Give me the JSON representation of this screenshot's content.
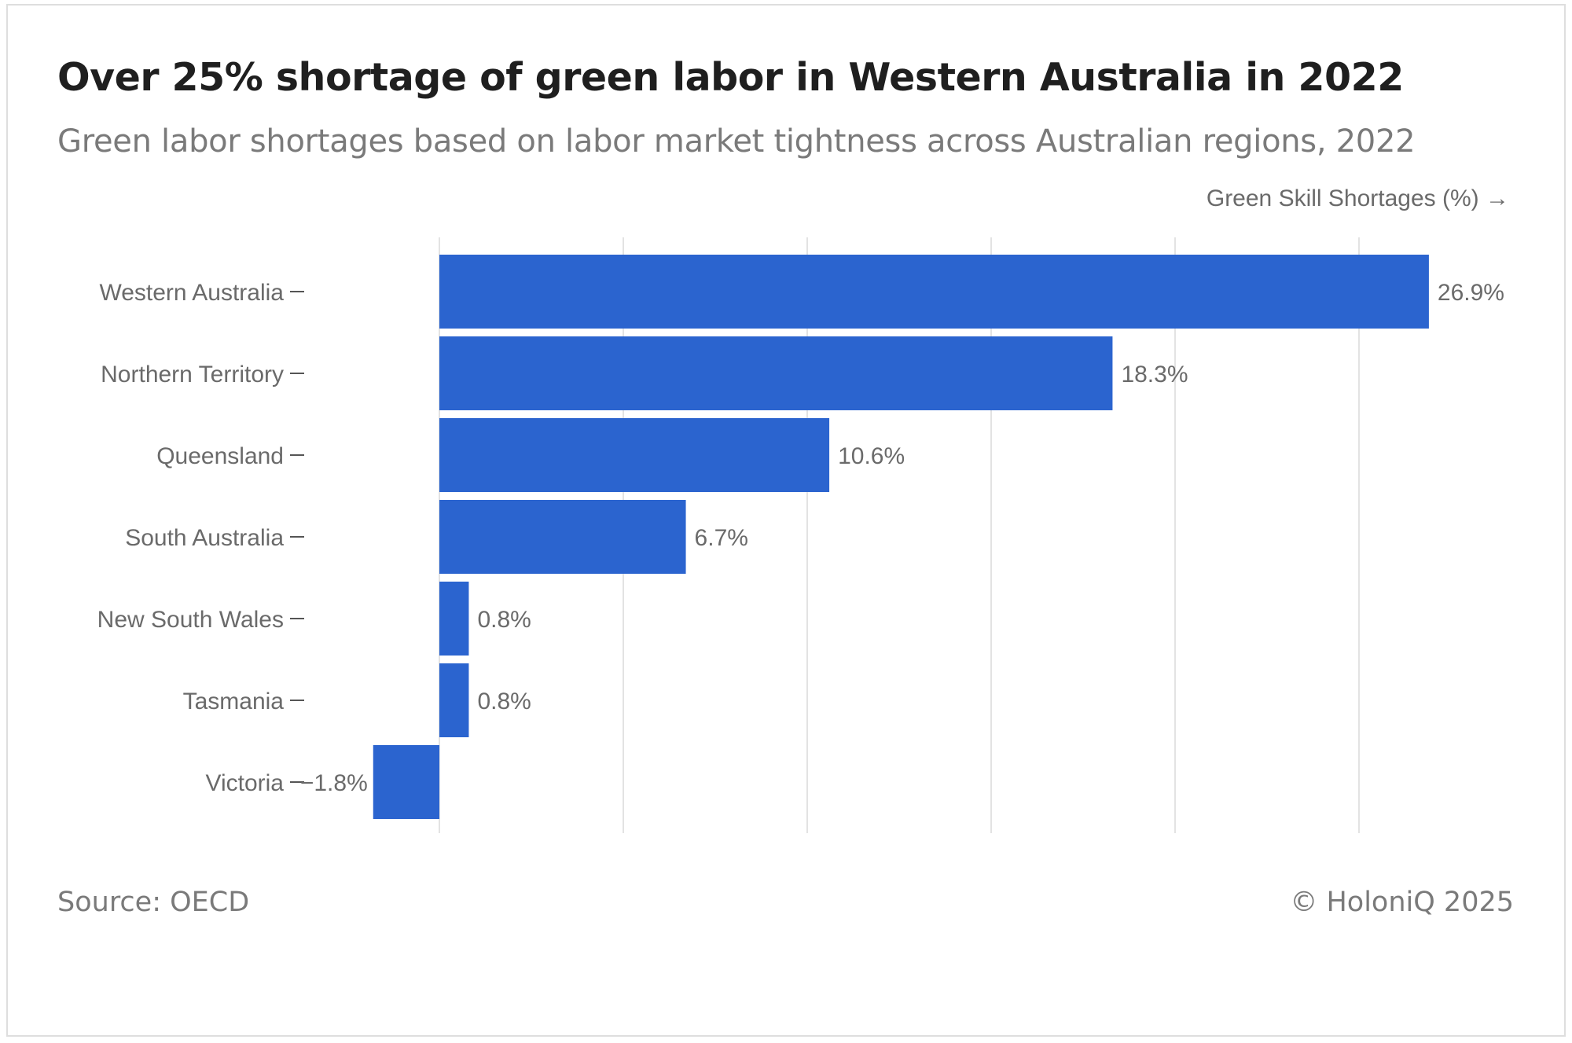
{
  "header": {
    "title": "Over 25% shortage of green labor in Western Australia in 2022",
    "subtitle": "Green labor shortages based on labor market tightness across Australian regions, 2022"
  },
  "footer": {
    "source": "Source: OECD",
    "copyright": "© HoloniQ 2025"
  },
  "colors": {
    "bar": "#2b64cf",
    "grid": "#e3e3e3",
    "label": "#6a6a6a"
  },
  "chart_data": {
    "type": "bar",
    "orientation": "horizontal",
    "title": "Over 25% shortage of green labor in Western Australia in 2022",
    "subtitle": "Green labor shortages based on labor market tightness across Australian regions, 2022",
    "xlabel": "Green Skill Shortages (%) →",
    "ylabel": "",
    "categories": [
      "Western Australia",
      "Northern Territory",
      "Queensland",
      "South Australia",
      "New South Wales",
      "Tasmania",
      "Victoria"
    ],
    "values": [
      26.9,
      18.3,
      10.6,
      6.7,
      0.8,
      0.8,
      -1.8
    ],
    "value_labels": [
      "26.9%",
      "18.3%",
      "10.6%",
      "6.7%",
      "0.8%",
      "0.8%",
      "−1.8%"
    ],
    "xlim": [
      -2,
      28
    ],
    "grid_step": 5,
    "grid": true,
    "x_tick_labels_shown": false
  }
}
